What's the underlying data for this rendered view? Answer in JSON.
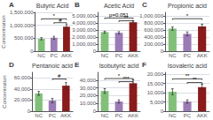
{
  "chart_data": [
    {
      "type": "bar",
      "label": "A",
      "title": "Butyric Acid",
      "ylabel": "Concentration",
      "categories": [
        "NC",
        "PC",
        "AKK"
      ],
      "values": [
        480000,
        520000,
        950000
      ],
      "errors": [
        45000,
        55000,
        80000
      ],
      "colors": [
        "#82c07a",
        "#9b7bb5",
        "#8b1a1a"
      ],
      "ylim": [
        0,
        1500000
      ],
      "yticks": [
        0,
        500000,
        1000000,
        1500000
      ],
      "grid": true,
      "annotations": [
        {
          "from": "NC",
          "to": "AKK",
          "y": 1250000,
          "text": "*"
        },
        {
          "from": "PC",
          "to": "AKK",
          "y": 1100000,
          "text": "#"
        }
      ]
    },
    {
      "type": "bar",
      "label": "B",
      "title": "Acetic Acid",
      "categories": [
        "NC",
        "PC",
        "AKK"
      ],
      "values": [
        2700000,
        2600000,
        4100000
      ],
      "errors": [
        130000,
        160000,
        220000
      ],
      "colors": [
        "#82c07a",
        "#9b7bb5",
        "#8b1a1a"
      ],
      "ylim": [
        0,
        5500000
      ],
      "yticks": [
        0,
        1000000,
        2000000,
        3000000,
        4000000,
        5000000
      ],
      "grid": true,
      "annotations": [
        {
          "from": "NC",
          "to": "AKK",
          "y": 4700000,
          "text": "p=0.051"
        },
        {
          "from": "PC",
          "to": "AKK",
          "y": 4300000,
          "text": "**"
        }
      ]
    },
    {
      "type": "bar",
      "label": "C",
      "title": "Propionic acid",
      "categories": [
        "NC",
        "PC",
        "AKK"
      ],
      "values": [
        640000,
        490000,
        700000
      ],
      "errors": [
        45000,
        55000,
        65000
      ],
      "colors": [
        "#82c07a",
        "#9b7bb5",
        "#8b1a1a"
      ],
      "ylim": [
        0,
        1100000
      ],
      "yticks": [
        0,
        200000,
        400000,
        600000,
        800000,
        1000000
      ],
      "grid": true,
      "annotations": [
        {
          "from": "NC",
          "to": "AKK",
          "y": 920000,
          "text": "*"
        }
      ]
    },
    {
      "type": "bar",
      "label": "D",
      "title": "Pentanoic acid",
      "ylabel": "Concentration",
      "categories": [
        "NC",
        "PC",
        "AKK"
      ],
      "values": [
        32000,
        19000,
        46000
      ],
      "errors": [
        3500,
        4000,
        5500
      ],
      "colors": [
        "#82c07a",
        "#9b7bb5",
        "#8b1a1a"
      ],
      "ylim": [
        0,
        70000
      ],
      "yticks": [
        0,
        20000,
        40000,
        60000
      ],
      "grid": true,
      "annotations": [
        {
          "from": "PC",
          "to": "AKK",
          "y": 58000,
          "text": "#"
        }
      ]
    },
    {
      "type": "bar",
      "label": "E",
      "title": "Isobutyric acid",
      "categories": [
        "NC",
        "PC",
        "AKK"
      ],
      "values": [
        26000,
        12500,
        36000
      ],
      "errors": [
        3000,
        2000,
        4500
      ],
      "colors": [
        "#82c07a",
        "#9b7bb5",
        "#8b1a1a"
      ],
      "ylim": [
        0,
        50000
      ],
      "yticks": [
        0,
        10000,
        20000,
        30000,
        40000
      ],
      "grid": true,
      "annotations": [
        {
          "from": "NC",
          "to": "AKK",
          "y": 42000,
          "text": "*"
        },
        {
          "from": "PC",
          "to": "AKK",
          "y": 38000,
          "text": "***"
        }
      ]
    },
    {
      "type": "bar",
      "label": "F",
      "title": "Isovaleric acid",
      "categories": [
        "NC",
        "PC",
        "AKK"
      ],
      "values": [
        10500,
        5200,
        13000
      ],
      "errors": [
        1600,
        900,
        1600
      ],
      "colors": [
        "#82c07a",
        "#9b7bb5",
        "#8b1a1a"
      ],
      "ylim": [
        0,
        21000
      ],
      "yticks": [
        0,
        5000,
        10000,
        15000,
        20000
      ],
      "grid": true,
      "annotations": [
        {
          "from": "NC",
          "to": "AKK",
          "y": 17500,
          "text": "**"
        },
        {
          "from": "PC",
          "to": "AKK",
          "y": 15500,
          "text": "**"
        }
      ]
    }
  ]
}
